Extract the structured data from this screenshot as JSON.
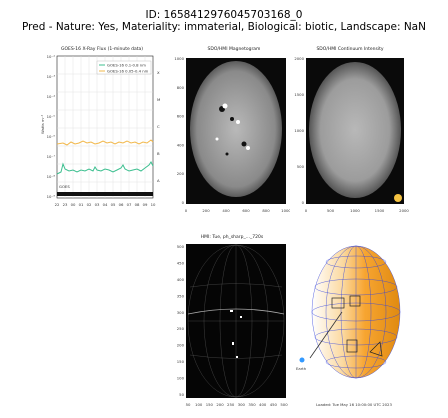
{
  "header": {
    "id_line": "ID: 1658412976045703168_0",
    "pred_line": "Pred - Nature: Yes, Materiality: immaterial, Biological: biotic, Landscape: NaN"
  },
  "panels": {
    "xray": {
      "title": "GOES-16 X-Ray Flux (1-minute data)",
      "legend": [
        "GOES-16 0.1-0.8 nm",
        "GOES-16 0.05-0.4 nm"
      ],
      "left_ticks": [
        "10⁻²",
        "10⁻³",
        "10⁻⁴",
        "10⁻⁵",
        "10⁻⁶",
        "10⁻⁷",
        "10⁻⁸",
        "10⁻⁹"
      ],
      "right_ticks": [
        "X",
        "M",
        "C",
        "B",
        "A"
      ],
      "x_ticks": [
        "22",
        "23",
        "00",
        "01",
        "02",
        "03",
        "04",
        "05",
        "06",
        "07",
        "08",
        "09",
        "10"
      ],
      "ylabel": "Watts m⁻²",
      "footer": "GOES",
      "colors": {
        "long": "#f2b84b",
        "short": "#3cbf8f"
      }
    },
    "mag": {
      "title": "SDO/HMI Magnetogram",
      "y_ticks": [
        "1000",
        "800",
        "600",
        "400",
        "200",
        "0"
      ],
      "x_ticks": [
        "0",
        "200",
        "400",
        "600",
        "800",
        "1000"
      ]
    },
    "white": {
      "title": "SDO/HMI Continuum Intensity",
      "y_ticks": [
        "2000",
        "1500",
        "1000",
        "500",
        "0"
      ],
      "x_ticks": [
        "0",
        "500",
        "1000",
        "1500",
        "2000"
      ]
    },
    "grid": {
      "title": "HMI: Tue, ph_sharp_..._720s",
      "y_ticks": [
        "500",
        "450",
        "400",
        "350",
        "300",
        "250",
        "200",
        "150",
        "100",
        "50"
      ],
      "x_ticks": [
        "50",
        "100",
        "150",
        "200",
        "250",
        "300",
        "350",
        "400",
        "450",
        "500"
      ]
    },
    "orbit": {
      "earth_label": "Earth",
      "footer": "Loaded: Tue May 16 10:00:00 UTC 2023",
      "colors": {
        "fill": "#f7a531",
        "wire": "#3344dd"
      }
    }
  }
}
